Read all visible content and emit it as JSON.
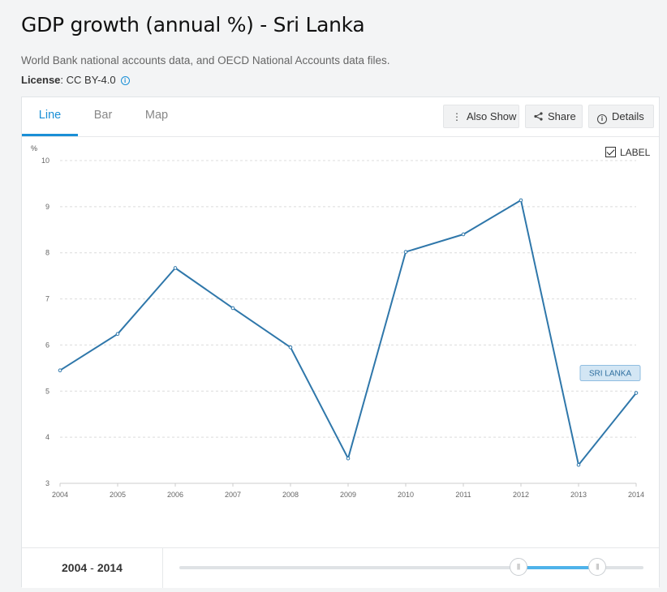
{
  "header": {
    "title": "GDP growth (annual %) - Sri Lanka",
    "source": "World Bank national accounts data, and OECD National Accounts data files.",
    "license_label": "License",
    "license_value": ": CC BY-4.0"
  },
  "tabs": [
    {
      "label": "Line",
      "active": true
    },
    {
      "label": "Bar",
      "active": false
    },
    {
      "label": "Map",
      "active": false
    }
  ],
  "toolbar": {
    "also_show": "Also Show",
    "share": "Share",
    "details": "Details"
  },
  "label_toggle": {
    "text": "LABEL",
    "checked": true
  },
  "footer": {
    "range_start": "2004",
    "range_sep": "-",
    "range_end": "2014",
    "slider_start_fraction": 0.73,
    "slider_end_fraction": 0.9
  },
  "colors": {
    "accent": "#1a8fd6",
    "line": "#2f77aa",
    "slider_fill": "#4fb3ea"
  },
  "chart_data": {
    "type": "line",
    "ylabel": "%",
    "x": [
      2004,
      2005,
      2006,
      2007,
      2008,
      2009,
      2010,
      2011,
      2012,
      2013,
      2014
    ],
    "series": [
      {
        "name": "SRI LANKA",
        "values": [
          5.45,
          6.24,
          7.67,
          6.8,
          5.95,
          3.54,
          8.02,
          8.4,
          9.14,
          3.4,
          4.96
        ]
      }
    ],
    "ylim": [
      3,
      10
    ],
    "yticks": [
      3,
      4,
      5,
      6,
      7,
      8,
      9,
      10
    ],
    "grid": true,
    "show_label": true
  }
}
